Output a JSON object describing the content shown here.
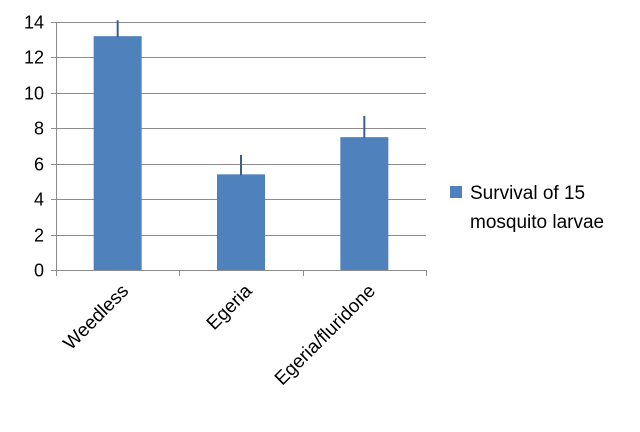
{
  "chart_data": {
    "type": "bar",
    "categories": [
      "Weedless",
      "Egeria",
      "Egeria/fluridone"
    ],
    "series": [
      {
        "name": "Survival of 15 mosquito larvae",
        "legend_lines": [
          "Survival of 15",
          "mosquito larvae"
        ],
        "values": [
          13.2,
          5.4,
          7.5
        ],
        "error_plus": [
          0.9,
          1.1,
          1.2
        ],
        "color": "#4f81bd"
      }
    ],
    "ylim": [
      0,
      14
    ],
    "yticks": [
      0,
      2,
      4,
      6,
      8,
      10,
      12,
      14
    ],
    "grid": true,
    "legend_position": "right",
    "title": "",
    "xlabel": "",
    "ylabel": ""
  }
}
